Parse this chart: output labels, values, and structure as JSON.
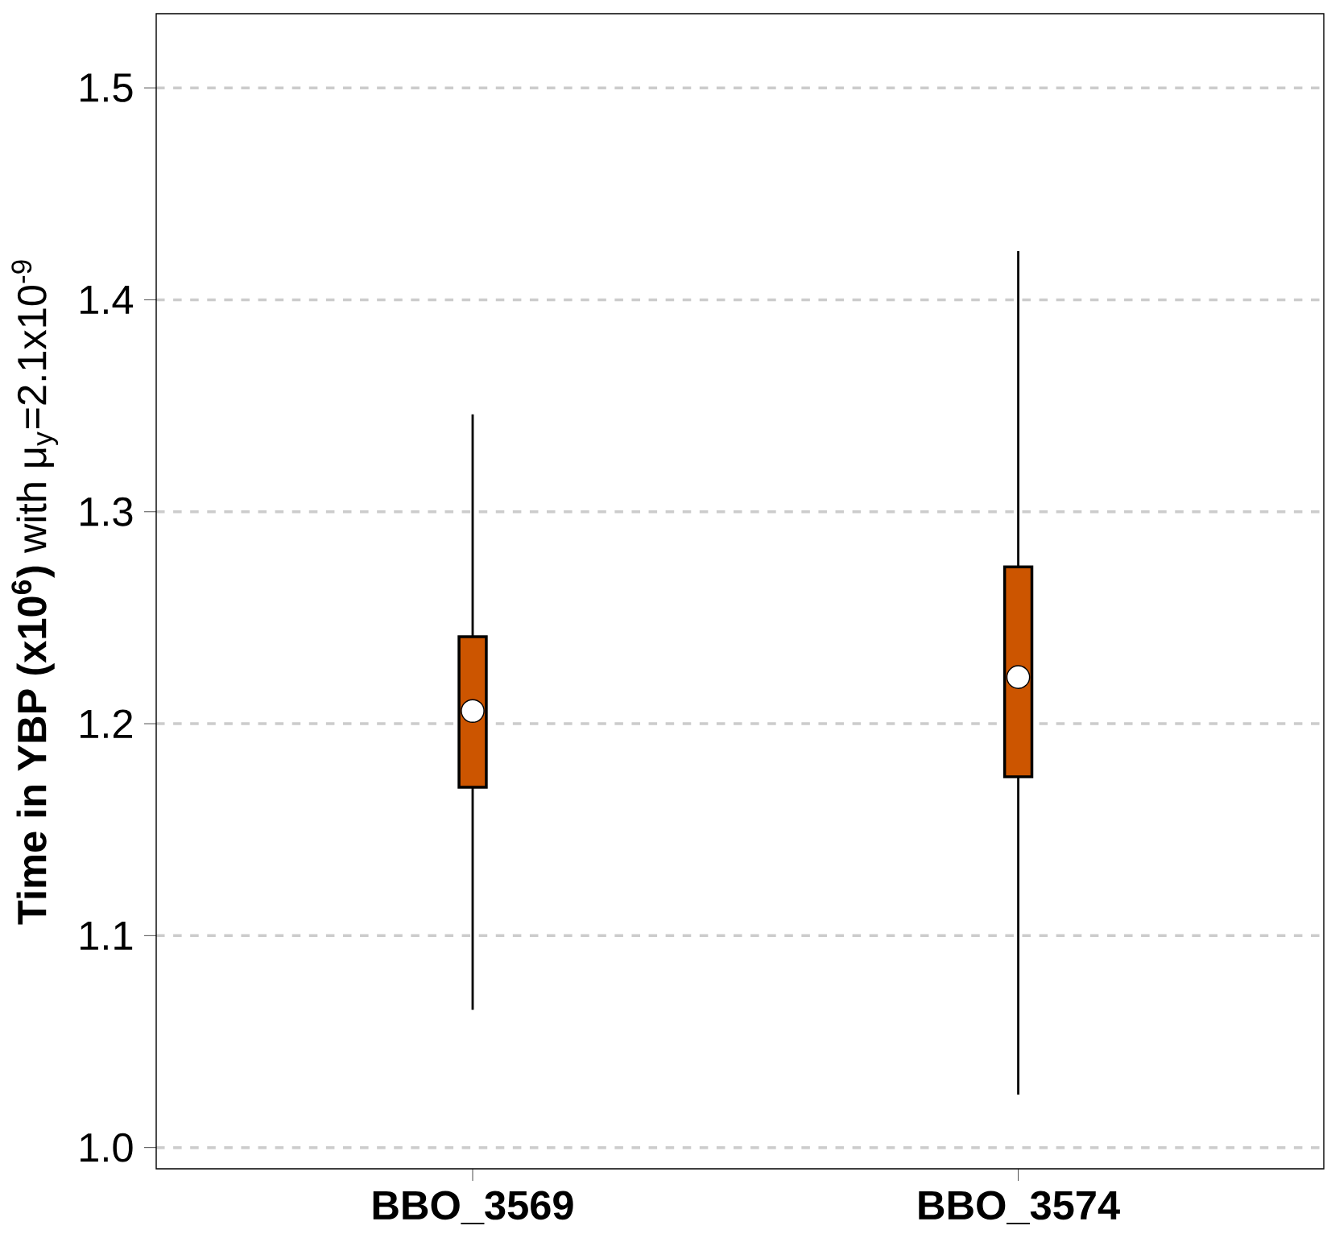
{
  "chart_data": {
    "type": "box",
    "ylabel": "**Time in YBP (x10$^{6}$)** with μ$_{y}$=2.1x10$^{-9}$",
    "categories": [
      "BBO_3569",
      "BBO_3574"
    ],
    "series": [
      {
        "color": "#cc5500",
        "boxes": [
          {
            "low": 1.065,
            "q1": 1.17,
            "median": 1.206,
            "q3": 1.241,
            "high": 1.346
          },
          {
            "low": 1.025,
            "q1": 1.175,
            "median": 1.222,
            "q3": 1.274,
            "high": 1.423
          }
        ]
      }
    ],
    "ylim": [
      0.99,
      1.535
    ],
    "yticks": [
      {
        "value": 1.0,
        "label": "1.0"
      },
      {
        "value": 1.1,
        "label": "1.1"
      },
      {
        "value": 1.2,
        "label": "1.2"
      },
      {
        "value": 1.3,
        "label": "1.3"
      },
      {
        "value": 1.4,
        "label": "1.4"
      },
      {
        "value": 1.5,
        "label": "1.5"
      }
    ],
    "grid": "y"
  }
}
